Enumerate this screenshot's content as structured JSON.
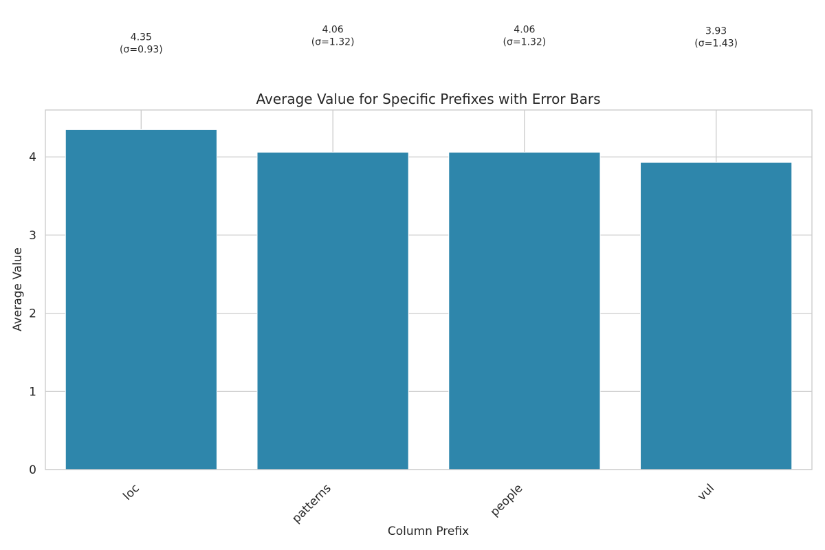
{
  "chart_data": {
    "type": "bar",
    "title": "Average Value for Specific Prefixes with Error Bars",
    "xlabel": "Column Prefix",
    "ylabel": "Average Value",
    "categories": [
      "loc",
      "patterns",
      "people",
      "vul"
    ],
    "values": [
      4.35,
      4.06,
      4.06,
      3.93
    ],
    "std": [
      0.93,
      1.32,
      1.32,
      1.43
    ],
    "value_labels": [
      "4.35",
      "4.06",
      "4.06",
      "3.93"
    ],
    "std_labels": [
      "(σ=0.93)",
      "(σ=1.32)",
      "(σ=1.32)",
      "(σ=1.43)"
    ],
    "ylim": [
      0,
      4.6
    ],
    "yticks": [
      0,
      1,
      2,
      3,
      4
    ],
    "grid": true,
    "bar_color": "#2e86ab",
    "error_bar_color": "#cccccc"
  }
}
